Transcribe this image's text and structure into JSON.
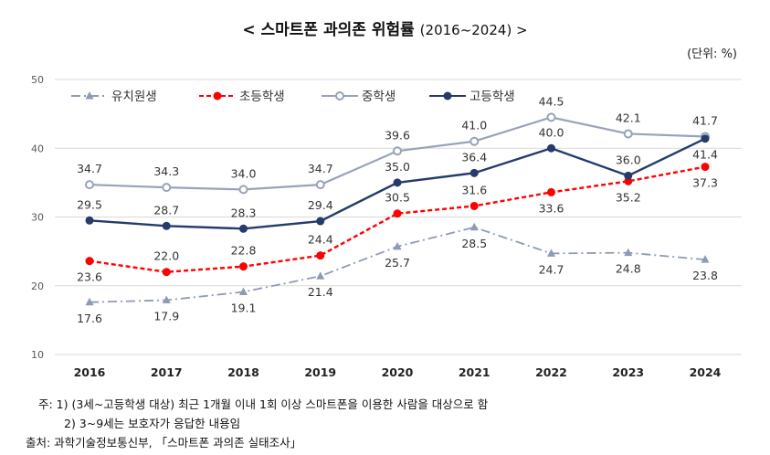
{
  "title": "< 스마트폰 과의존 위험률",
  "title_years": "(2016~2024) >",
  "unit": "(단위: %)",
  "notes": [
    "주: 1) (3세~고등학생 대상) 최근 1개월 이내 1회 이상 스마트폰을 이용한 사람을 대상으로 함",
    "2) 3~9세는 보호자가 응답한 내용임"
  ],
  "source": "출처: 과학기술정보통신부, 「스마트폰 과의존 실태조사」",
  "chart_data": {
    "type": "line",
    "x": [
      "2016",
      "2017",
      "2018",
      "2019",
      "2020",
      "2021",
      "2022",
      "2023",
      "2024"
    ],
    "ylim": [
      10,
      50
    ],
    "yticks": [
      10,
      20,
      30,
      40,
      50
    ],
    "grid": true,
    "legend": "top-left",
    "series": [
      {
        "name": "유치원생",
        "color": "#8E9BB5",
        "style": "dash-dot",
        "marker": "triangle",
        "values": [
          17.6,
          17.9,
          19.1,
          21.4,
          25.7,
          28.5,
          24.7,
          24.8,
          23.8
        ]
      },
      {
        "name": "초등학생",
        "color": "#FF0000",
        "style": "dashed",
        "marker": "filled-circle",
        "values": [
          23.6,
          22.0,
          22.8,
          24.4,
          30.5,
          31.6,
          33.6,
          35.2,
          37.3
        ]
      },
      {
        "name": "중학생",
        "color": "#97A3B9",
        "style": "solid",
        "marker": "hollow-circle",
        "values": [
          34.7,
          34.3,
          34.0,
          34.7,
          39.6,
          41.0,
          44.5,
          42.1,
          41.7
        ]
      },
      {
        "name": "고등학생",
        "color": "#243B6B",
        "style": "solid",
        "marker": "filled-circle",
        "values": [
          29.5,
          28.7,
          28.3,
          29.4,
          35.0,
          36.4,
          40.0,
          36.0,
          41.4
        ]
      }
    ]
  }
}
